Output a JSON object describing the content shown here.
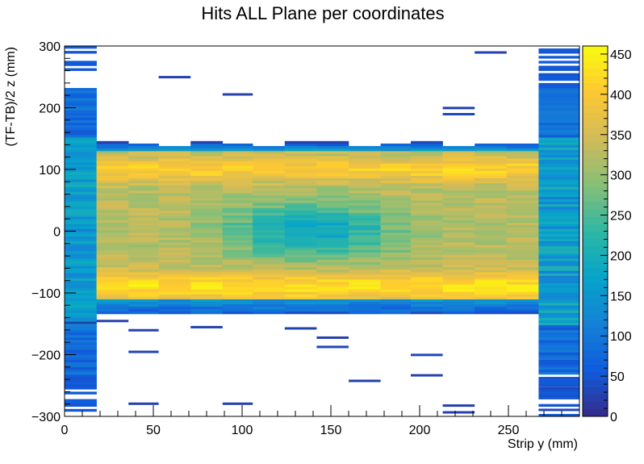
{
  "chart_data": {
    "type": "heatmap",
    "title": "Hits ALL Plane per coordinates",
    "xlabel": "Strip y (mm)",
    "ylabel": "(TF-TB)/2 z (mm)",
    "xlim": [
      0,
      290
    ],
    "ylim": [
      -300,
      300
    ],
    "x_ticks": [
      "0",
      "50",
      "100",
      "150",
      "200",
      "250"
    ],
    "x_tick_values": [
      0,
      50,
      100,
      150,
      200,
      250
    ],
    "y_ticks": [
      "300",
      "200",
      "100",
      "0",
      "−100",
      "−200",
      "−300"
    ],
    "y_tick_values": [
      300,
      200,
      100,
      0,
      -100,
      -200,
      -300
    ],
    "colorbar": {
      "zlim": [
        0,
        460
      ],
      "ticks": [
        "0",
        "50",
        "100",
        "150",
        "200",
        "250",
        "300",
        "350",
        "400",
        "450"
      ],
      "tick_values": [
        0,
        50,
        100,
        150,
        200,
        250,
        300,
        350,
        400,
        450
      ],
      "palette": [
        "#352a87",
        "#0f5cdd",
        "#1481d6",
        "#06a4ca",
        "#2eb7a4",
        "#87bf77",
        "#d1bb59",
        "#fec832",
        "#f9fb0e"
      ]
    },
    "strip_edges": [
      0,
      18,
      36,
      53,
      71,
      89,
      106,
      124,
      142,
      160,
      178,
      195,
      213,
      231,
      249,
      267,
      290
    ],
    "grid": false,
    "legend": "none",
    "summary": {
      "edge_strips": "strips 0-18 and 267-290 show low counts (~30-200) over the full z range -300 to 300",
      "central_band": "strips 18-267 dense between z = -135 and z = 140; counts ~330-460 near z = +100 and z = -90, ~150-250 near z = 0 for strips 106-178",
      "tails": "sparse single-count bins outside the central band"
    },
    "sparse_bins": [
      {
        "x0": 89,
        "x1": 106,
        "z": 222,
        "v": 25
      },
      {
        "x0": 53,
        "x1": 71,
        "z": 250,
        "v": 25
      },
      {
        "x0": 231,
        "x1": 249,
        "z": 290,
        "v": 25
      },
      {
        "x0": 213,
        "x1": 231,
        "z": 200,
        "v": 25
      },
      {
        "x0": 213,
        "x1": 231,
        "z": 190,
        "v": 35
      },
      {
        "x0": 36,
        "x1": 53,
        "z": -160,
        "v": 25
      },
      {
        "x0": 36,
        "x1": 53,
        "z": -195,
        "v": 30
      },
      {
        "x0": 71,
        "x1": 89,
        "z": -155,
        "v": 25
      },
      {
        "x0": 124,
        "x1": 142,
        "z": -157,
        "v": 25
      },
      {
        "x0": 142,
        "x1": 160,
        "z": -172,
        "v": 25
      },
      {
        "x0": 142,
        "x1": 160,
        "z": -187,
        "v": 35
      },
      {
        "x0": 160,
        "x1": 178,
        "z": -242,
        "v": 25
      },
      {
        "x0": 195,
        "x1": 213,
        "z": -200,
        "v": 35
      },
      {
        "x0": 195,
        "x1": 213,
        "z": -233,
        "v": 25
      },
      {
        "x0": 36,
        "x1": 53,
        "z": -279,
        "v": 25
      },
      {
        "x0": 89,
        "x1": 106,
        "z": -279,
        "v": 25
      },
      {
        "x0": 213,
        "x1": 231,
        "z": -282,
        "v": 25
      },
      {
        "x0": 213,
        "x1": 231,
        "z": -293,
        "v": 25
      },
      {
        "x0": 0,
        "x1": 18,
        "z": -148,
        "v": 25
      },
      {
        "x0": 18,
        "x1": 36,
        "z": -145,
        "v": 25
      },
      {
        "x0": 267,
        "x1": 290,
        "z": -289,
        "v": 35
      },
      {
        "x0": 267,
        "x1": 290,
        "z": -254,
        "v": 35
      }
    ]
  }
}
